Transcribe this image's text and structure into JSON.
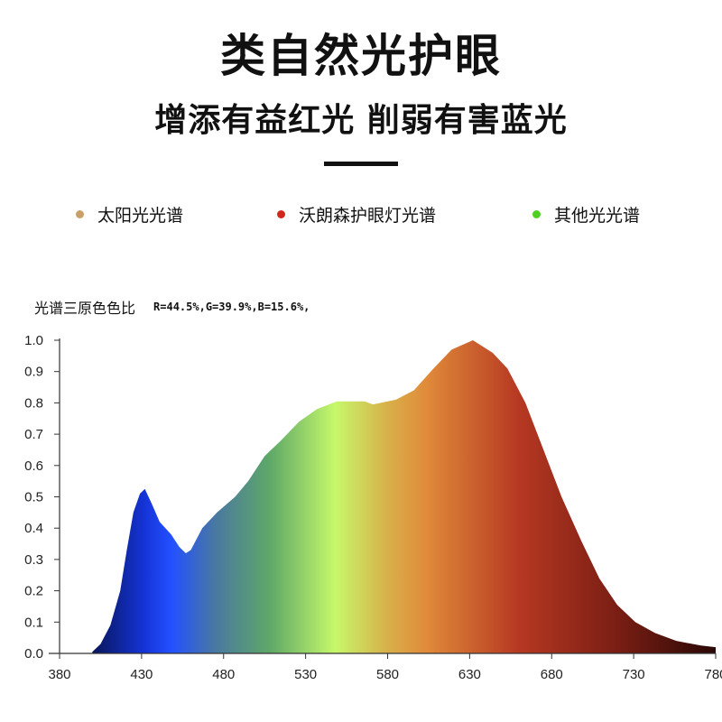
{
  "header": {
    "title": "类自然光护眼",
    "subtitle": "增添有益红光 削弱有害蓝光"
  },
  "legend": [
    {
      "label": "太阳光光谱",
      "color": "#c9a06a"
    },
    {
      "label": "沃朗森护眼灯光谱",
      "color": "#d0281c"
    },
    {
      "label": "其他光光谱",
      "color": "#4fcf22"
    }
  ],
  "ratio": {
    "label": "光谱三原色色比",
    "values": "R=44.5%,G=39.9%,B=15.6%,"
  },
  "chart_data": {
    "type": "area",
    "title": "",
    "xlabel": "",
    "ylabel": "",
    "xlim": [
      380,
      780
    ],
    "ylim": [
      0,
      1.0
    ],
    "x_ticks": [
      "380",
      "430",
      "480",
      "530",
      "580",
      "630",
      "680",
      "730",
      "780"
    ],
    "y_ticks": [
      "0.0",
      "0.1",
      "0.2",
      "0.3",
      "0.4",
      "0.5",
      "0.6",
      "0.7",
      "0.8",
      "0.9",
      "1.0"
    ],
    "grid": false,
    "fill": "spectral color gradient",
    "x": [
      400,
      405,
      411,
      417,
      421,
      425,
      429,
      432,
      436,
      441,
      448,
      453,
      457,
      460,
      467,
      476,
      487,
      495,
      505,
      515,
      526,
      537,
      549,
      566,
      571,
      585,
      596,
      608,
      619,
      632,
      644,
      653,
      664,
      675,
      686,
      698,
      709,
      720,
      731,
      743,
      756,
      771,
      780
    ],
    "y": [
      0.005,
      0.03,
      0.09,
      0.2,
      0.33,
      0.45,
      0.51,
      0.525,
      0.48,
      0.42,
      0.38,
      0.34,
      0.32,
      0.33,
      0.4,
      0.45,
      0.5,
      0.55,
      0.63,
      0.68,
      0.74,
      0.78,
      0.805,
      0.805,
      0.795,
      0.81,
      0.84,
      0.91,
      0.97,
      1.0,
      0.96,
      0.91,
      0.8,
      0.65,
      0.5,
      0.36,
      0.24,
      0.155,
      0.1,
      0.065,
      0.04,
      0.025,
      0.02
    ]
  }
}
